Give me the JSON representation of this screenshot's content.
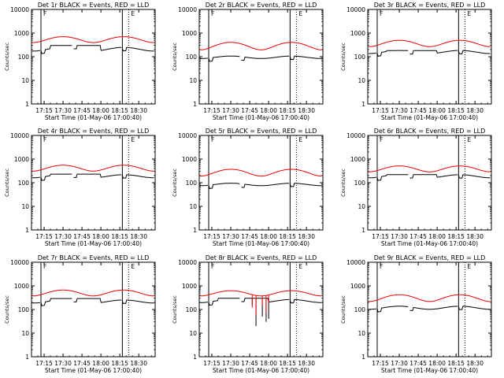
{
  "chart_data": [
    {
      "type": "line",
      "title": "Det 1r BLACK = Events, RED = LLD",
      "xlabel": "Start Time (01-May-06 17:00:40)",
      "ylabel": "Counts/sec",
      "ylim": [
        1,
        10000
      ],
      "y_scale": "log",
      "xlim_minutes": [
        5,
        103
      ],
      "x_ticks": [
        "17:15",
        "17:30",
        "17:45",
        "18:00",
        "18:15",
        "18:30"
      ],
      "y_ticks": [
        "1",
        "10",
        "100",
        "1000",
        "10000"
      ],
      "solid_vertical_lines_min": [
        12.5,
        77
      ],
      "dotted_vertical_lines_min": [
        82
      ],
      "flag_labels": [
        "F",
        "E"
      ],
      "series": [
        {
          "name": "Events",
          "color": "#000000",
          "base": 210,
          "amp": 0.18,
          "plateau": 300,
          "breaks": [
            12.5,
            38,
            77
          ]
        },
        {
          "name": "LLD",
          "color": "#ee0000",
          "base": 550,
          "amp": 0.28,
          "plateau": 0,
          "breaks": []
        }
      ]
    },
    {
      "type": "line",
      "title": "Det 2r BLACK = Events, RED = LLD",
      "xlabel": "Start Time (01-May-06 17:00:40)",
      "ylabel": "Counts/sec",
      "ylim": [
        1,
        10000
      ],
      "y_scale": "log",
      "xlim_minutes": [
        5,
        103
      ],
      "x_ticks": [
        "17:15",
        "17:30",
        "17:45",
        "18:00",
        "18:15",
        "18:30"
      ],
      "y_ticks": [
        "1",
        "10",
        "100",
        "1000",
        "10000"
      ],
      "solid_vertical_lines_min": [
        12.5,
        77
      ],
      "dotted_vertical_lines_min": [
        82
      ],
      "flag_labels": [
        "F",
        "E"
      ],
      "series": [
        {
          "name": "Events",
          "color": "#000000",
          "base": 95,
          "amp": 0.12,
          "plateau": 0,
          "breaks": [
            12.5,
            38,
            77
          ]
        },
        {
          "name": "LLD",
          "color": "#ee0000",
          "base": 300,
          "amp": 0.35,
          "plateau": 0,
          "breaks": []
        }
      ]
    },
    {
      "type": "line",
      "title": "Det 3r BLACK = Events, RED = LLD",
      "xlabel": "Start Time (01-May-06 17:00:40)",
      "ylabel": "Counts/sec",
      "ylim": [
        1,
        10000
      ],
      "y_scale": "log",
      "xlim_minutes": [
        5,
        103
      ],
      "x_ticks": [
        "17:15",
        "17:30",
        "17:45",
        "18:00",
        "18:15",
        "18:30"
      ],
      "y_ticks": [
        "1",
        "10",
        "100",
        "1000",
        "10000"
      ],
      "solid_vertical_lines_min": [
        12.5,
        77
      ],
      "dotted_vertical_lines_min": [
        82
      ],
      "flag_labels": [
        "F",
        "E"
      ],
      "series": [
        {
          "name": "Events",
          "color": "#000000",
          "base": 160,
          "amp": 0.15,
          "plateau": 180,
          "breaks": [
            12.5,
            38,
            77
          ]
        },
        {
          "name": "LLD",
          "color": "#ee0000",
          "base": 380,
          "amp": 0.3,
          "plateau": 0,
          "breaks": []
        }
      ]
    },
    {
      "type": "line",
      "title": "Det 4r BLACK = Events, RED = LLD",
      "xlabel": "Start Time (01-May-06 17:00:40)",
      "ylabel": "Counts/sec",
      "ylim": [
        1,
        10000
      ],
      "y_scale": "log",
      "xlim_minutes": [
        5,
        103
      ],
      "x_ticks": [
        "17:15",
        "17:30",
        "17:45",
        "18:00",
        "18:15",
        "18:30"
      ],
      "y_ticks": [
        "1",
        "10",
        "100",
        "1000",
        "10000"
      ],
      "solid_vertical_lines_min": [
        12.5,
        77
      ],
      "dotted_vertical_lines_min": [
        82
      ],
      "flag_labels": [
        "F",
        "E"
      ],
      "series": [
        {
          "name": "Events",
          "color": "#000000",
          "base": 190,
          "amp": 0.15,
          "plateau": 230,
          "breaks": [
            12.5,
            38,
            77
          ]
        },
        {
          "name": "LLD",
          "color": "#ee0000",
          "base": 430,
          "amp": 0.28,
          "plateau": 0,
          "breaks": []
        }
      ]
    },
    {
      "type": "line",
      "title": "Det 5r BLACK = Events, RED = LLD",
      "xlabel": "Start Time (01-May-06 17:00:40)",
      "ylabel": "Counts/sec",
      "ylim": [
        1,
        10000
      ],
      "y_scale": "log",
      "xlim_minutes": [
        5,
        103
      ],
      "x_ticks": [
        "17:15",
        "17:30",
        "17:45",
        "18:00",
        "18:15",
        "18:30"
      ],
      "y_ticks": [
        "1",
        "10",
        "100",
        "1000",
        "10000"
      ],
      "solid_vertical_lines_min": [
        12.5,
        77
      ],
      "dotted_vertical_lines_min": [
        82
      ],
      "flag_labels": [
        "F",
        "E"
      ],
      "series": [
        {
          "name": "Events",
          "color": "#000000",
          "base": 85,
          "amp": 0.12,
          "plateau": 0,
          "breaks": [
            12.5,
            38,
            77
          ]
        },
        {
          "name": "LLD",
          "color": "#ee0000",
          "base": 280,
          "amp": 0.32,
          "plateau": 0,
          "breaks": []
        }
      ]
    },
    {
      "type": "line",
      "title": "Det 6r BLACK = Events, RED = LLD",
      "xlabel": "Start Time (01-May-06 17:00:40)",
      "ylabel": "Counts/sec",
      "ylim": [
        1,
        10000
      ],
      "y_scale": "log",
      "xlim_minutes": [
        5,
        103
      ],
      "x_ticks": [
        "17:15",
        "17:30",
        "17:45",
        "18:00",
        "18:15",
        "18:30"
      ],
      "y_ticks": [
        "1",
        "10",
        "100",
        "1000",
        "10000"
      ],
      "solid_vertical_lines_min": [
        12.5,
        77
      ],
      "dotted_vertical_lines_min": [
        82
      ],
      "flag_labels": [
        "F",
        "E"
      ],
      "series": [
        {
          "name": "Events",
          "color": "#000000",
          "base": 190,
          "amp": 0.15,
          "plateau": 220,
          "breaks": [
            12.5,
            38,
            77
          ]
        },
        {
          "name": "LLD",
          "color": "#ee0000",
          "base": 400,
          "amp": 0.28,
          "plateau": 0,
          "breaks": []
        }
      ]
    },
    {
      "type": "line",
      "title": "Det 7r BLACK = Events, RED = LLD",
      "xlabel": "Start Time (01-May-06 17:00:40)",
      "ylabel": "Counts/sec",
      "ylim": [
        1,
        10000
      ],
      "y_scale": "log",
      "xlim_minutes": [
        5,
        103
      ],
      "x_ticks": [
        "17:15",
        "17:30",
        "17:45",
        "18:00",
        "18:15",
        "18:30"
      ],
      "y_ticks": [
        "1",
        "10",
        "100",
        "1000",
        "10000"
      ],
      "solid_vertical_lines_min": [
        12.5,
        77
      ],
      "dotted_vertical_lines_min": [
        82
      ],
      "flag_labels": [
        "F",
        "E"
      ],
      "series": [
        {
          "name": "Events",
          "color": "#000000",
          "base": 220,
          "amp": 0.15,
          "plateau": 290,
          "breaks": [
            12.5,
            38,
            77
          ]
        },
        {
          "name": "LLD",
          "color": "#ee0000",
          "base": 520,
          "amp": 0.28,
          "plateau": 0,
          "breaks": []
        }
      ]
    },
    {
      "type": "line",
      "title": "Det 8r BLACK = Events, RED = LLD",
      "xlabel": "Start Time (01-May-06 17:00:40)",
      "ylabel": "Counts/sec",
      "ylim": [
        1,
        10000
      ],
      "y_scale": "log",
      "xlim_minutes": [
        5,
        103
      ],
      "x_ticks": [
        "17:15",
        "17:30",
        "17:45",
        "18:00",
        "18:15",
        "18:30"
      ],
      "y_ticks": [
        "1",
        "10",
        "100",
        "1000",
        "10000"
      ],
      "solid_vertical_lines_min": [
        12.5,
        77
      ],
      "dotted_vertical_lines_min": [
        82
      ],
      "flag_labels": [
        "F",
        "E"
      ],
      "series": [
        {
          "name": "Events",
          "color": "#000000",
          "base": 230,
          "amp": 0.15,
          "plateau": 300,
          "breaks": [
            12.5,
            38,
            77
          ],
          "spikes": [
            [
              47,
              150
            ],
            [
              50,
              20
            ],
            [
              55,
              50
            ],
            [
              58,
              30
            ],
            [
              60,
              40
            ]
          ]
        },
        {
          "name": "LLD",
          "color": "#ee0000",
          "base": 500,
          "amp": 0.25,
          "plateau": 0,
          "breaks": [],
          "spikes": [
            [
              47,
              120
            ],
            [
              50,
              60
            ],
            [
              55,
              150
            ],
            [
              58,
              70
            ],
            [
              60,
              200
            ]
          ]
        }
      ]
    },
    {
      "type": "line",
      "title": "Det 9r BLACK = Events, RED = LLD",
      "xlabel": "Start Time (01-May-06 17:00:40)",
      "ylabel": "Counts/sec",
      "ylim": [
        1,
        10000
      ],
      "y_scale": "log",
      "xlim_minutes": [
        5,
        103
      ],
      "x_ticks": [
        "17:15",
        "17:30",
        "17:45",
        "18:00",
        "18:15",
        "18:30"
      ],
      "y_ticks": [
        "1",
        "10",
        "100",
        "1000",
        "10000"
      ],
      "solid_vertical_lines_min": [
        12.5,
        77
      ],
      "dotted_vertical_lines_min": [
        82
      ],
      "flag_labels": [
        "F",
        "E"
      ],
      "series": [
        {
          "name": "Events",
          "color": "#000000",
          "base": 120,
          "amp": 0.15,
          "plateau": 0,
          "breaks": [
            12.5,
            38,
            77
          ]
        },
        {
          "name": "LLD",
          "color": "#ee0000",
          "base": 320,
          "amp": 0.32,
          "plateau": 0,
          "breaks": []
        }
      ]
    }
  ]
}
